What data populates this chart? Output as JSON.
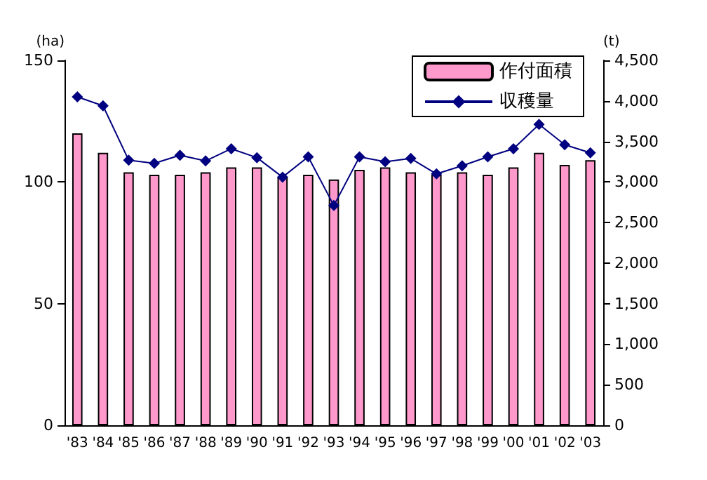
{
  "chart_data": {
    "type": "bar",
    "ylabel": "(ha)",
    "y2label": "(t)",
    "categories": [
      "'83",
      "'84",
      "'85",
      "'86",
      "'87",
      "'88",
      "'89",
      "'90",
      "'91",
      "'92",
      "'93",
      "'94",
      "'95",
      "'96",
      "'97",
      "'98",
      "'99",
      "'00",
      "'01",
      "'02",
      "'03"
    ],
    "series": [
      {
        "name": "作付面積",
        "color": "#ff99cc",
        "values": [
          120,
          112,
          104,
          103,
          103,
          104,
          106,
          106,
          102,
          103,
          101,
          105,
          106,
          104,
          103,
          104,
          103,
          106,
          112,
          107,
          109
        ]
      },
      {
        "name": "収穫量",
        "type": "line",
        "axis": "y2",
        "color": "#000080",
        "marker": "diamond",
        "values": [
          4050,
          3940,
          3270,
          3230,
          3330,
          3260,
          3410,
          3300,
          3060,
          3310,
          2710,
          3310,
          3250,
          3290,
          3100,
          3200,
          3310,
          3410,
          3710,
          3460,
          3360
        ]
      }
    ],
    "ylim": [
      0,
      150
    ],
    "yticks": [
      0,
      50,
      100,
      150
    ],
    "y2lim": [
      0,
      4500
    ],
    "y2ticks": [
      {
        "value": 0,
        "label": "0"
      },
      {
        "value": 500,
        "label": "500"
      },
      {
        "value": 1000,
        "label": "1,000"
      },
      {
        "value": 1500,
        "label": "1,500"
      },
      {
        "value": 2000,
        "label": "2,000"
      },
      {
        "value": 2500,
        "label": "2,500"
      },
      {
        "value": 3000,
        "label": "3,000"
      },
      {
        "value": 3500,
        "label": "3,500"
      },
      {
        "value": 4000,
        "label": "4,000"
      },
      {
        "value": 4500,
        "label": "4,500"
      }
    ],
    "grid": false,
    "legend": "top right"
  }
}
